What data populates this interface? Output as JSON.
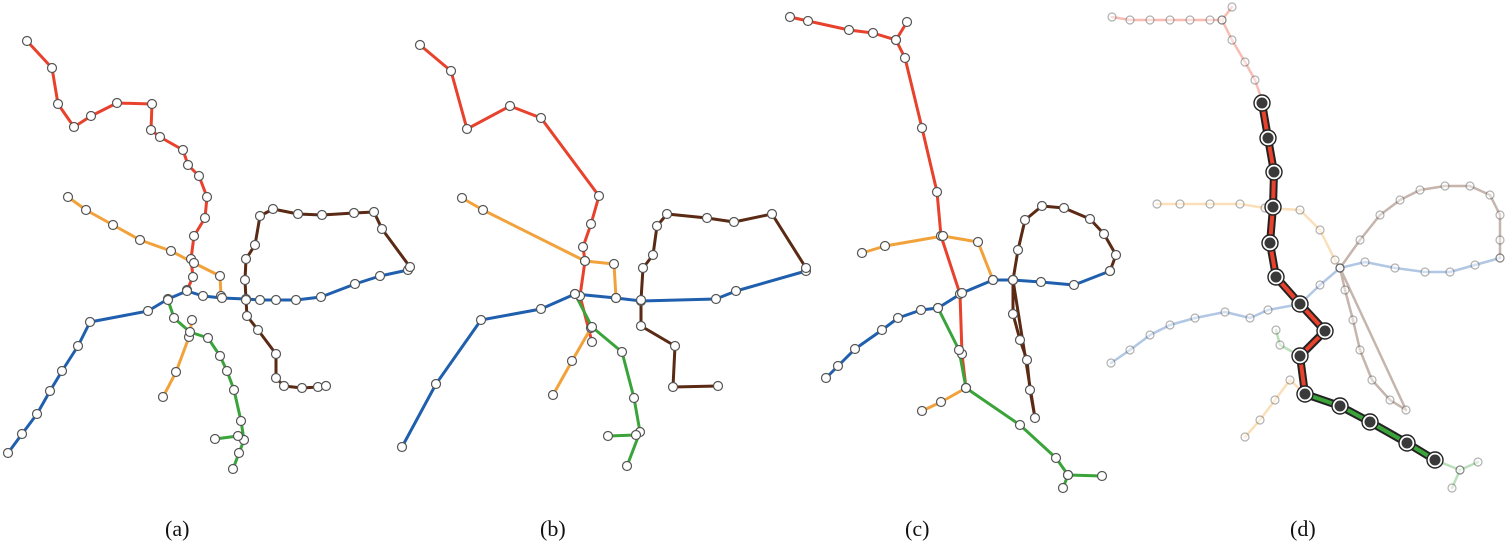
{
  "captions": {
    "a": "(a)",
    "b": "(b)",
    "c": "(c)",
    "d": "(d)"
  },
  "colors": {
    "red": "#e8412c",
    "orange": "#f2a23a",
    "blue": "#1f5fae",
    "brown": "#5a2a14",
    "green": "#3aa43a",
    "node_fill": "#ffffff",
    "node_stroke": "#555555",
    "highlight_node": "#3a3a3a"
  },
  "panels": [
    "a",
    "b",
    "c",
    "d"
  ],
  "line_names": [
    "red",
    "orange",
    "blue",
    "brown",
    "green"
  ]
}
